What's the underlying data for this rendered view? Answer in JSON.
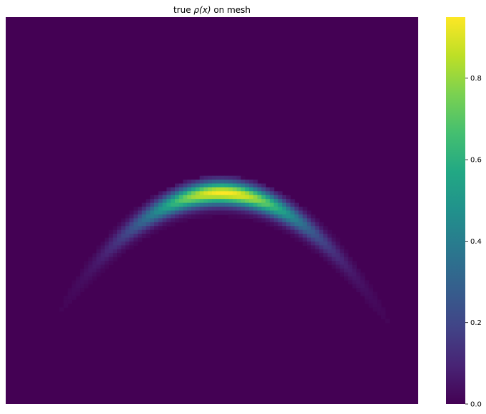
{
  "chart_data": {
    "type": "heatmap",
    "title_prefix": "true ",
    "title_math": "ρ(x)",
    "title_suffix": " on mesh",
    "xlabel": "",
    "ylabel": "",
    "grid": false,
    "colormap": "viridis",
    "colorbar": {
      "range": [
        0.0,
        0.95
      ],
      "ticks": [
        0.0,
        0.2,
        0.4,
        0.6,
        0.8
      ],
      "tick_labels": [
        "0.0",
        "0.2",
        "0.4",
        "0.6",
        "0.8"
      ]
    },
    "field": {
      "shape": "parabolic arc (banana-shaped density)",
      "arc_x_range_fraction": [
        0.05,
        0.95
      ],
      "peak_value": 0.95,
      "background_value": 0.0,
      "grid_cells": [
        100,
        100
      ]
    }
  }
}
